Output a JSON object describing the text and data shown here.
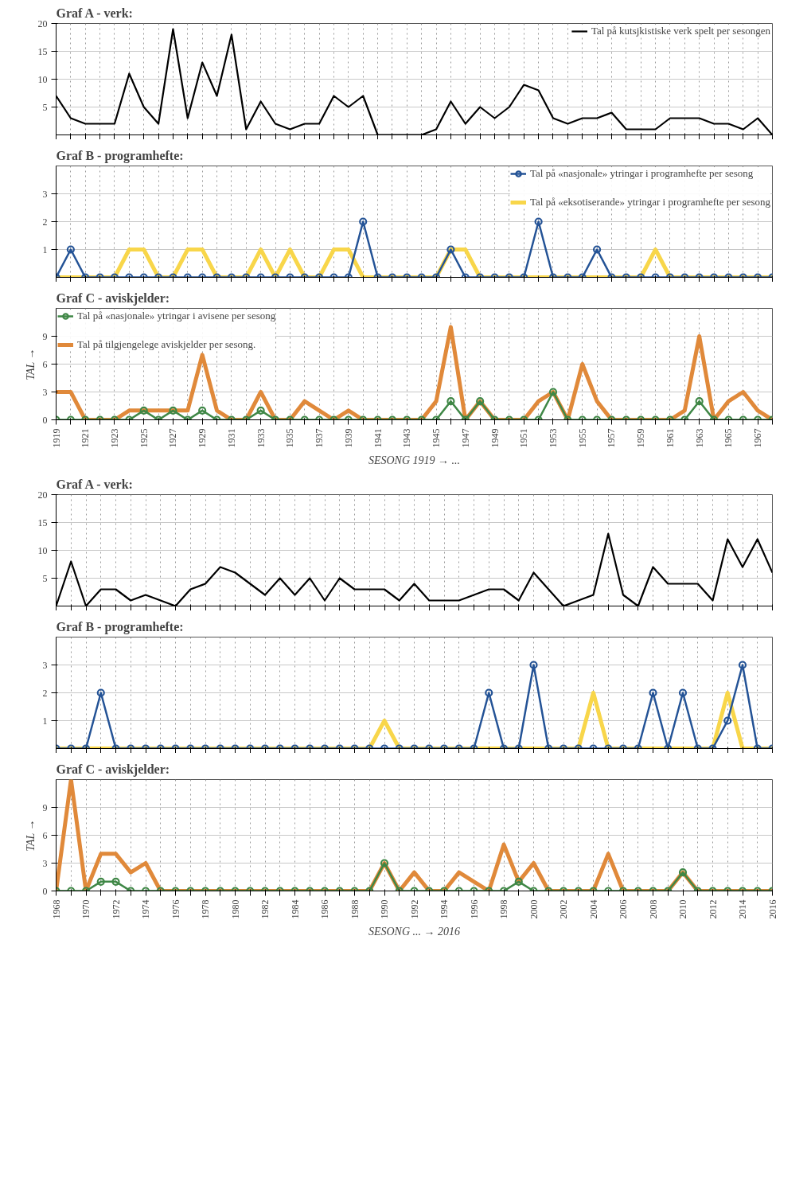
{
  "chart_data": [
    {
      "type": "line",
      "title": "Graf A - verk:",
      "tick_labels": "y",
      "grid": true,
      "legend": "top right",
      "x": [
        1919,
        1920,
        1921,
        1922,
        1923,
        1924,
        1925,
        1926,
        1927,
        1928,
        1929,
        1930,
        1931,
        1932,
        1933,
        1934,
        1935,
        1936,
        1937,
        1938,
        1939,
        1940,
        1941,
        1942,
        1943,
        1944,
        1945,
        1946,
        1947,
        1948,
        1949,
        1950,
        1951,
        1952,
        1953,
        1954,
        1955,
        1956,
        1957,
        1958,
        1959,
        1960,
        1961,
        1962,
        1963,
        1964,
        1965,
        1966,
        1967,
        1968
      ],
      "xlim": [
        1919,
        1968
      ],
      "xticks": [
        1919,
        {
          "value": 1920,
          "label": null
        },
        1921,
        {
          "value": 1922,
          "label": null
        },
        1923,
        {
          "value": 1924,
          "label": null
        },
        1925,
        {
          "value": 1926,
          "label": null
        },
        1927,
        {
          "value": 1928,
          "label": null
        },
        1929,
        {
          "value": 1930,
          "label": null
        },
        1931,
        {
          "value": 1932,
          "label": null
        },
        1933,
        {
          "value": 1934,
          "label": null
        },
        1935,
        {
          "value": 1936,
          "label": null
        },
        1937,
        {
          "value": 1938,
          "label": null
        },
        1939,
        {
          "value": 1940,
          "label": null
        },
        1941,
        {
          "value": 1942,
          "label": null
        },
        1943,
        {
          "value": 1944,
          "label": null
        },
        1945,
        {
          "value": 1946,
          "label": null
        },
        1947,
        {
          "value": 1948,
          "label": null
        },
        1949,
        {
          "value": 1950,
          "label": null
        },
        1951,
        {
          "value": 1952,
          "label": null
        },
        1953,
        {
          "value": 1954,
          "label": null
        },
        1955,
        {
          "value": 1956,
          "label": null
        },
        1957,
        {
          "value": 1958,
          "label": null
        },
        1959,
        {
          "value": 1960,
          "label": null
        },
        1961,
        {
          "value": 1962,
          "label": null
        },
        1963,
        {
          "value": 1964,
          "label": null
        },
        1965,
        {
          "value": 1966,
          "label": null
        },
        1967,
        {
          "value": 1968,
          "label": null
        }
      ],
      "ylim": [
        0,
        20
      ],
      "yticks": [
        5,
        10,
        15,
        20
      ],
      "series": [
        {
          "name": "Tal på kutsjkistiske verk spelt per sesongen",
          "color": "#000000",
          "marker": "none",
          "values": [
            7,
            3,
            2,
            2,
            2,
            11,
            5,
            2,
            19,
            3,
            13,
            7,
            18,
            1,
            6,
            2,
            1,
            2,
            2,
            7,
            5,
            7,
            0,
            0,
            0,
            0,
            1,
            6,
            2,
            5,
            3,
            5,
            9,
            8,
            3,
            2,
            3,
            3,
            4,
            1,
            1,
            1,
            3,
            3,
            3,
            2,
            2,
            1,
            3,
            0
          ]
        }
      ]
    },
    {
      "type": "line",
      "title": "Graf B - programhefte:",
      "tick_labels": "y",
      "grid": true,
      "legend": "top right",
      "x": [
        1919,
        1920,
        1921,
        1922,
        1923,
        1924,
        1925,
        1926,
        1927,
        1928,
        1929,
        1930,
        1931,
        1932,
        1933,
        1934,
        1935,
        1936,
        1937,
        1938,
        1939,
        1940,
        1941,
        1942,
        1943,
        1944,
        1945,
        1946,
        1947,
        1948,
        1949,
        1950,
        1951,
        1952,
        1953,
        1954,
        1955,
        1956,
        1957,
        1958,
        1959,
        1960,
        1961,
        1962,
        1963,
        1964,
        1965,
        1966,
        1967,
        1968
      ],
      "xlim": [
        1919,
        1968
      ],
      "xticks": [
        1919,
        {
          "value": 1920,
          "label": null
        },
        1921,
        {
          "value": 1922,
          "label": null
        },
        1923,
        {
          "value": 1924,
          "label": null
        },
        1925,
        {
          "value": 1926,
          "label": null
        },
        1927,
        {
          "value": 1928,
          "label": null
        },
        1929,
        {
          "value": 1930,
          "label": null
        },
        1931,
        {
          "value": 1932,
          "label": null
        },
        1933,
        {
          "value": 1934,
          "label": null
        },
        1935,
        {
          "value": 1936,
          "label": null
        },
        1937,
        {
          "value": 1938,
          "label": null
        },
        1939,
        {
          "value": 1940,
          "label": null
        },
        1941,
        {
          "value": 1942,
          "label": null
        },
        1943,
        {
          "value": 1944,
          "label": null
        },
        1945,
        {
          "value": 1946,
          "label": null
        },
        1947,
        {
          "value": 1948,
          "label": null
        },
        1949,
        {
          "value": 1950,
          "label": null
        },
        1951,
        {
          "value": 1952,
          "label": null
        },
        1953,
        {
          "value": 1954,
          "label": null
        },
        1955,
        {
          "value": 1956,
          "label": null
        },
        1957,
        {
          "value": 1958,
          "label": null
        },
        1959,
        {
          "value": 1960,
          "label": null
        },
        1961,
        {
          "value": 1962,
          "label": null
        },
        1963,
        {
          "value": 1964,
          "label": null
        },
        1965,
        {
          "value": 1966,
          "label": null
        },
        1967,
        {
          "value": 1968,
          "label": null
        }
      ],
      "ylim": [
        0,
        4
      ],
      "yticks": [
        1,
        2,
        3
      ],
      "series": [
        {
          "name": "Tal på «nasjonale» ytringar i programhefte per sesong",
          "color": "#245396",
          "marker": "circle",
          "values": [
            0,
            1,
            0,
            0,
            0,
            0,
            0,
            0,
            0,
            0,
            0,
            0,
            0,
            0,
            0,
            0,
            0,
            0,
            0,
            0,
            0,
            2,
            0,
            0,
            0,
            0,
            0,
            1,
            0,
            0,
            0,
            0,
            0,
            2,
            0,
            0,
            0,
            1,
            0,
            0,
            0,
            0,
            0,
            0,
            0,
            0,
            0,
            0,
            0,
            0
          ]
        },
        {
          "name": "Tal på «eksotiserande» ytringar i programhefte per sesong",
          "color": "#f8d64a",
          "marker": "none",
          "values": [
            0,
            0,
            0,
            0,
            0,
            1,
            1,
            0,
            0,
            1,
            1,
            0,
            0,
            0,
            1,
            0,
            1,
            0,
            0,
            1,
            1,
            0,
            0,
            0,
            0,
            0,
            0,
            1,
            1,
            0,
            0,
            0,
            0,
            0,
            0,
            0,
            0,
            0,
            0,
            0,
            0,
            1,
            0,
            0,
            0,
            0,
            0,
            0,
            0,
            0
          ]
        }
      ]
    },
    {
      "type": "line",
      "title": "Graf C - aviskjelder:",
      "xlabel": "SESONG 1919 → ...",
      "ylabel": "TAL →",
      "grid": true,
      "legend": "top left",
      "x": [
        1919,
        1920,
        1921,
        1922,
        1923,
        1924,
        1925,
        1926,
        1927,
        1928,
        1929,
        1930,
        1931,
        1932,
        1933,
        1934,
        1935,
        1936,
        1937,
        1938,
        1939,
        1940,
        1941,
        1942,
        1943,
        1944,
        1945,
        1946,
        1947,
        1948,
        1949,
        1950,
        1951,
        1952,
        1953,
        1954,
        1955,
        1956,
        1957,
        1958,
        1959,
        1960,
        1961,
        1962,
        1963,
        1964,
        1965,
        1966,
        1967,
        1968
      ],
      "xlim": [
        1919,
        1968
      ],
      "xticks": [
        1919,
        {
          "value": 1920,
          "label": null
        },
        1921,
        {
          "value": 1922,
          "label": null
        },
        1923,
        {
          "value": 1924,
          "label": null
        },
        1925,
        {
          "value": 1926,
          "label": null
        },
        1927,
        {
          "value": 1928,
          "label": null
        },
        1929,
        {
          "value": 1930,
          "label": null
        },
        1931,
        {
          "value": 1932,
          "label": null
        },
        1933,
        {
          "value": 1934,
          "label": null
        },
        1935,
        {
          "value": 1936,
          "label": null
        },
        1937,
        {
          "value": 1938,
          "label": null
        },
        1939,
        {
          "value": 1940,
          "label": null
        },
        1941,
        {
          "value": 1942,
          "label": null
        },
        1943,
        {
          "value": 1944,
          "label": null
        },
        1945,
        {
          "value": 1946,
          "label": null
        },
        1947,
        {
          "value": 1948,
          "label": null
        },
        1949,
        {
          "value": 1950,
          "label": null
        },
        1951,
        {
          "value": 1952,
          "label": null
        },
        1953,
        {
          "value": 1954,
          "label": null
        },
        1955,
        {
          "value": 1956,
          "label": null
        },
        1957,
        {
          "value": 1958,
          "label": null
        },
        1959,
        {
          "value": 1960,
          "label": null
        },
        1961,
        {
          "value": 1962,
          "label": null
        },
        1963,
        {
          "value": 1964,
          "label": null
        },
        1965,
        {
          "value": 1966,
          "label": null
        },
        1967,
        {
          "value": 1968,
          "label": null
        }
      ],
      "ylim": [
        0,
        12
      ],
      "yticks": [
        0,
        3,
        6,
        9
      ],
      "series": [
        {
          "name": "Tal på «nasjonale» ytringar i avisene per sesong",
          "color": "#3f8746",
          "marker": "circle",
          "values": [
            0,
            0,
            0,
            0,
            0,
            0,
            1,
            0,
            1,
            0,
            1,
            0,
            0,
            0,
            1,
            0,
            0,
            0,
            0,
            0,
            0,
            0,
            0,
            0,
            0,
            0,
            0,
            2,
            0,
            2,
            0,
            0,
            0,
            0,
            3,
            0,
            0,
            0,
            0,
            0,
            0,
            0,
            0,
            0,
            2,
            0,
            0,
            0,
            0,
            0
          ]
        },
        {
          "name": "Tal på tilgjengelege aviskjelder per sesong.",
          "color": "#e0893a",
          "marker": "none",
          "values": [
            3,
            3,
            0,
            0,
            0,
            1,
            1,
            1,
            1,
            1,
            7,
            1,
            0,
            0,
            3,
            0,
            0,
            2,
            1,
            0,
            1,
            0,
            0,
            0,
            0,
            0,
            2,
            10,
            0,
            2,
            0,
            0,
            0,
            2,
            3,
            0,
            6,
            2,
            0,
            0,
            0,
            0,
            0,
            1,
            9,
            0,
            2,
            3,
            1,
            0
          ]
        }
      ]
    },
    {
      "type": "line",
      "title": "Graf A - verk:",
      "tick_labels": "y",
      "grid": true,
      "x": [
        1968,
        1969,
        1970,
        1971,
        1972,
        1973,
        1974,
        1975,
        1976,
        1977,
        1978,
        1979,
        1980,
        1981,
        1982,
        1983,
        1984,
        1985,
        1986,
        1987,
        1988,
        1989,
        1990,
        1991,
        1992,
        1993,
        1994,
        1995,
        1996,
        1997,
        1998,
        1999,
        2000,
        2001,
        2002,
        2003,
        2004,
        2005,
        2006,
        2007,
        2008,
        2009,
        2010,
        2011,
        2012,
        2013,
        2014,
        2015,
        2016
      ],
      "xlim": [
        1968,
        2016
      ],
      "xticks": [
        1968,
        {
          "value": 1969,
          "label": null
        },
        1970,
        {
          "value": 1971,
          "label": null
        },
        1972,
        {
          "value": 1973,
          "label": null
        },
        1974,
        {
          "value": 1975,
          "label": null
        },
        1976,
        {
          "value": 1977,
          "label": null
        },
        1978,
        {
          "value": 1979,
          "label": null
        },
        1980,
        {
          "value": 1981,
          "label": null
        },
        1982,
        {
          "value": 1983,
          "label": null
        },
        1984,
        {
          "value": 1985,
          "label": null
        },
        1986,
        {
          "value": 1987,
          "label": null
        },
        1988,
        {
          "value": 1989,
          "label": null
        },
        1990,
        {
          "value": 1991,
          "label": null
        },
        1992,
        {
          "value": 1993,
          "label": null
        },
        1994,
        {
          "value": 1995,
          "label": null
        },
        1996,
        {
          "value": 1997,
          "label": null
        },
        1998,
        {
          "value": 1999,
          "label": null
        },
        2000,
        {
          "value": 2001,
          "label": null
        },
        2002,
        {
          "value": 2003,
          "label": null
        },
        2004,
        {
          "value": 2005,
          "label": null
        },
        2006,
        {
          "value": 2007,
          "label": null
        },
        2008,
        {
          "value": 2009,
          "label": null
        },
        2010,
        {
          "value": 2011,
          "label": null
        },
        2012,
        {
          "value": 2013,
          "label": null
        },
        2014,
        {
          "value": 2015,
          "label": null
        },
        2016
      ],
      "ylim": [
        0,
        20
      ],
      "yticks": [
        5,
        10,
        15,
        20
      ],
      "series": [
        {
          "color": "#000000",
          "marker": "none",
          "values": [
            0,
            8,
            0,
            3,
            3,
            1,
            2,
            1,
            0,
            3,
            4,
            7,
            6,
            4,
            2,
            5,
            2,
            5,
            1,
            5,
            3,
            3,
            3,
            1,
            4,
            1,
            1,
            1,
            2,
            3,
            3,
            1,
            6,
            3,
            0,
            1,
            2,
            13,
            2,
            0,
            7,
            4,
            4,
            4,
            1,
            12,
            7,
            12,
            6
          ]
        }
      ]
    },
    {
      "type": "line",
      "title": "Graf B - programhefte:",
      "tick_labels": "y",
      "grid": true,
      "x": [
        1968,
        1969,
        1970,
        1971,
        1972,
        1973,
        1974,
        1975,
        1976,
        1977,
        1978,
        1979,
        1980,
        1981,
        1982,
        1983,
        1984,
        1985,
        1986,
        1987,
        1988,
        1989,
        1990,
        1991,
        1992,
        1993,
        1994,
        1995,
        1996,
        1997,
        1998,
        1999,
        2000,
        2001,
        2002,
        2003,
        2004,
        2005,
        2006,
        2007,
        2008,
        2009,
        2010,
        2011,
        2012,
        2013,
        2014,
        2015,
        2016
      ],
      "xlim": [
        1968,
        2016
      ],
      "xticks": [
        1968,
        {
          "value": 1969,
          "label": null
        },
        1970,
        {
          "value": 1971,
          "label": null
        },
        1972,
        {
          "value": 1973,
          "label": null
        },
        1974,
        {
          "value": 1975,
          "label": null
        },
        1976,
        {
          "value": 1977,
          "label": null
        },
        1978,
        {
          "value": 1979,
          "label": null
        },
        1980,
        {
          "value": 1981,
          "label": null
        },
        1982,
        {
          "value": 1983,
          "label": null
        },
        1984,
        {
          "value": 1985,
          "label": null
        },
        1986,
        {
          "value": 1987,
          "label": null
        },
        1988,
        {
          "value": 1989,
          "label": null
        },
        1990,
        {
          "value": 1991,
          "label": null
        },
        1992,
        {
          "value": 1993,
          "label": null
        },
        1994,
        {
          "value": 1995,
          "label": null
        },
        1996,
        {
          "value": 1997,
          "label": null
        },
        1998,
        {
          "value": 1999,
          "label": null
        },
        2000,
        {
          "value": 2001,
          "label": null
        },
        2002,
        {
          "value": 2003,
          "label": null
        },
        2004,
        {
          "value": 2005,
          "label": null
        },
        2006,
        {
          "value": 2007,
          "label": null
        },
        2008,
        {
          "value": 2009,
          "label": null
        },
        2010,
        {
          "value": 2011,
          "label": null
        },
        2012,
        {
          "value": 2013,
          "label": null
        },
        2014,
        {
          "value": 2015,
          "label": null
        },
        2016
      ],
      "ylim": [
        0,
        4
      ],
      "yticks": [
        1,
        2,
        3
      ],
      "series": [
        {
          "color": "#245396",
          "marker": "circle",
          "values": [
            0,
            0,
            0,
            2,
            0,
            0,
            0,
            0,
            0,
            0,
            0,
            0,
            0,
            0,
            0,
            0,
            0,
            0,
            0,
            0,
            0,
            0,
            0,
            0,
            0,
            0,
            0,
            0,
            0,
            2,
            0,
            0,
            3,
            0,
            0,
            0,
            0,
            0,
            0,
            0,
            2,
            0,
            2,
            0,
            0,
            1,
            3,
            0,
            0
          ]
        },
        {
          "color": "#f8d64a",
          "marker": "none",
          "values": [
            0,
            0,
            0,
            0,
            0,
            0,
            0,
            0,
            0,
            0,
            0,
            0,
            0,
            0,
            0,
            0,
            0,
            0,
            0,
            0,
            0,
            0,
            1,
            0,
            0,
            0,
            0,
            0,
            0,
            0,
            0,
            0,
            0,
            0,
            0,
            0,
            2,
            0,
            0,
            0,
            0,
            0,
            0,
            0,
            0,
            2,
            0,
            0,
            0
          ]
        }
      ]
    },
    {
      "type": "line",
      "title": "Graf C - aviskjelder:",
      "xlabel": "SESONG ... → 2016",
      "ylabel": "TAL →",
      "grid": true,
      "x": [
        1968,
        1969,
        1970,
        1971,
        1972,
        1973,
        1974,
        1975,
        1976,
        1977,
        1978,
        1979,
        1980,
        1981,
        1982,
        1983,
        1984,
        1985,
        1986,
        1987,
        1988,
        1989,
        1990,
        1991,
        1992,
        1993,
        1994,
        1995,
        1996,
        1997,
        1998,
        1999,
        2000,
        2001,
        2002,
        2003,
        2004,
        2005,
        2006,
        2007,
        2008,
        2009,
        2010,
        2011,
        2012,
        2013,
        2014,
        2015,
        2016
      ],
      "xlim": [
        1968,
        2016
      ],
      "xticks": [
        1968,
        {
          "value": 1969,
          "label": null
        },
        1970,
        {
          "value": 1971,
          "label": null
        },
        1972,
        {
          "value": 1973,
          "label": null
        },
        1974,
        {
          "value": 1975,
          "label": null
        },
        1976,
        {
          "value": 1977,
          "label": null
        },
        1978,
        {
          "value": 1979,
          "label": null
        },
        1980,
        {
          "value": 1981,
          "label": null
        },
        1982,
        {
          "value": 1983,
          "label": null
        },
        1984,
        {
          "value": 1985,
          "label": null
        },
        1986,
        {
          "value": 1987,
          "label": null
        },
        1988,
        {
          "value": 1989,
          "label": null
        },
        1990,
        {
          "value": 1991,
          "label": null
        },
        1992,
        {
          "value": 1993,
          "label": null
        },
        1994,
        {
          "value": 1995,
          "label": null
        },
        1996,
        {
          "value": 1997,
          "label": null
        },
        1998,
        {
          "value": 1999,
          "label": null
        },
        2000,
        {
          "value": 2001,
          "label": null
        },
        2002,
        {
          "value": 2003,
          "label": null
        },
        2004,
        {
          "value": 2005,
          "label": null
        },
        2006,
        {
          "value": 2007,
          "label": null
        },
        2008,
        {
          "value": 2009,
          "label": null
        },
        2010,
        {
          "value": 2011,
          "label": null
        },
        2012,
        {
          "value": 2013,
          "label": null
        },
        2014,
        {
          "value": 2015,
          "label": null
        },
        2016
      ],
      "ylim": [
        0,
        12
      ],
      "yticks": [
        0,
        3,
        6,
        9
      ],
      "series": [
        {
          "color": "#3f8746",
          "marker": "circle",
          "values": [
            0,
            0,
            0,
            1,
            1,
            0,
            0,
            0,
            0,
            0,
            0,
            0,
            0,
            0,
            0,
            0,
            0,
            0,
            0,
            0,
            0,
            0,
            3,
            0,
            0,
            0,
            0,
            0,
            0,
            0,
            0,
            1,
            0,
            0,
            0,
            0,
            0,
            0,
            0,
            0,
            0,
            0,
            2,
            0,
            0,
            0,
            0,
            0,
            0
          ]
        },
        {
          "color": "#e0893a",
          "marker": "none",
          "values": [
            0,
            12,
            0,
            4,
            4,
            2,
            3,
            0,
            0,
            0,
            0,
            0,
            0,
            0,
            0,
            0,
            0,
            0,
            0,
            0,
            0,
            0,
            3,
            0,
            2,
            0,
            0,
            2,
            1,
            0,
            5,
            1,
            3,
            0,
            0,
            0,
            0,
            4,
            0,
            0,
            0,
            0,
            2,
            0,
            0,
            0,
            0,
            0,
            0
          ]
        }
      ]
    }
  ]
}
